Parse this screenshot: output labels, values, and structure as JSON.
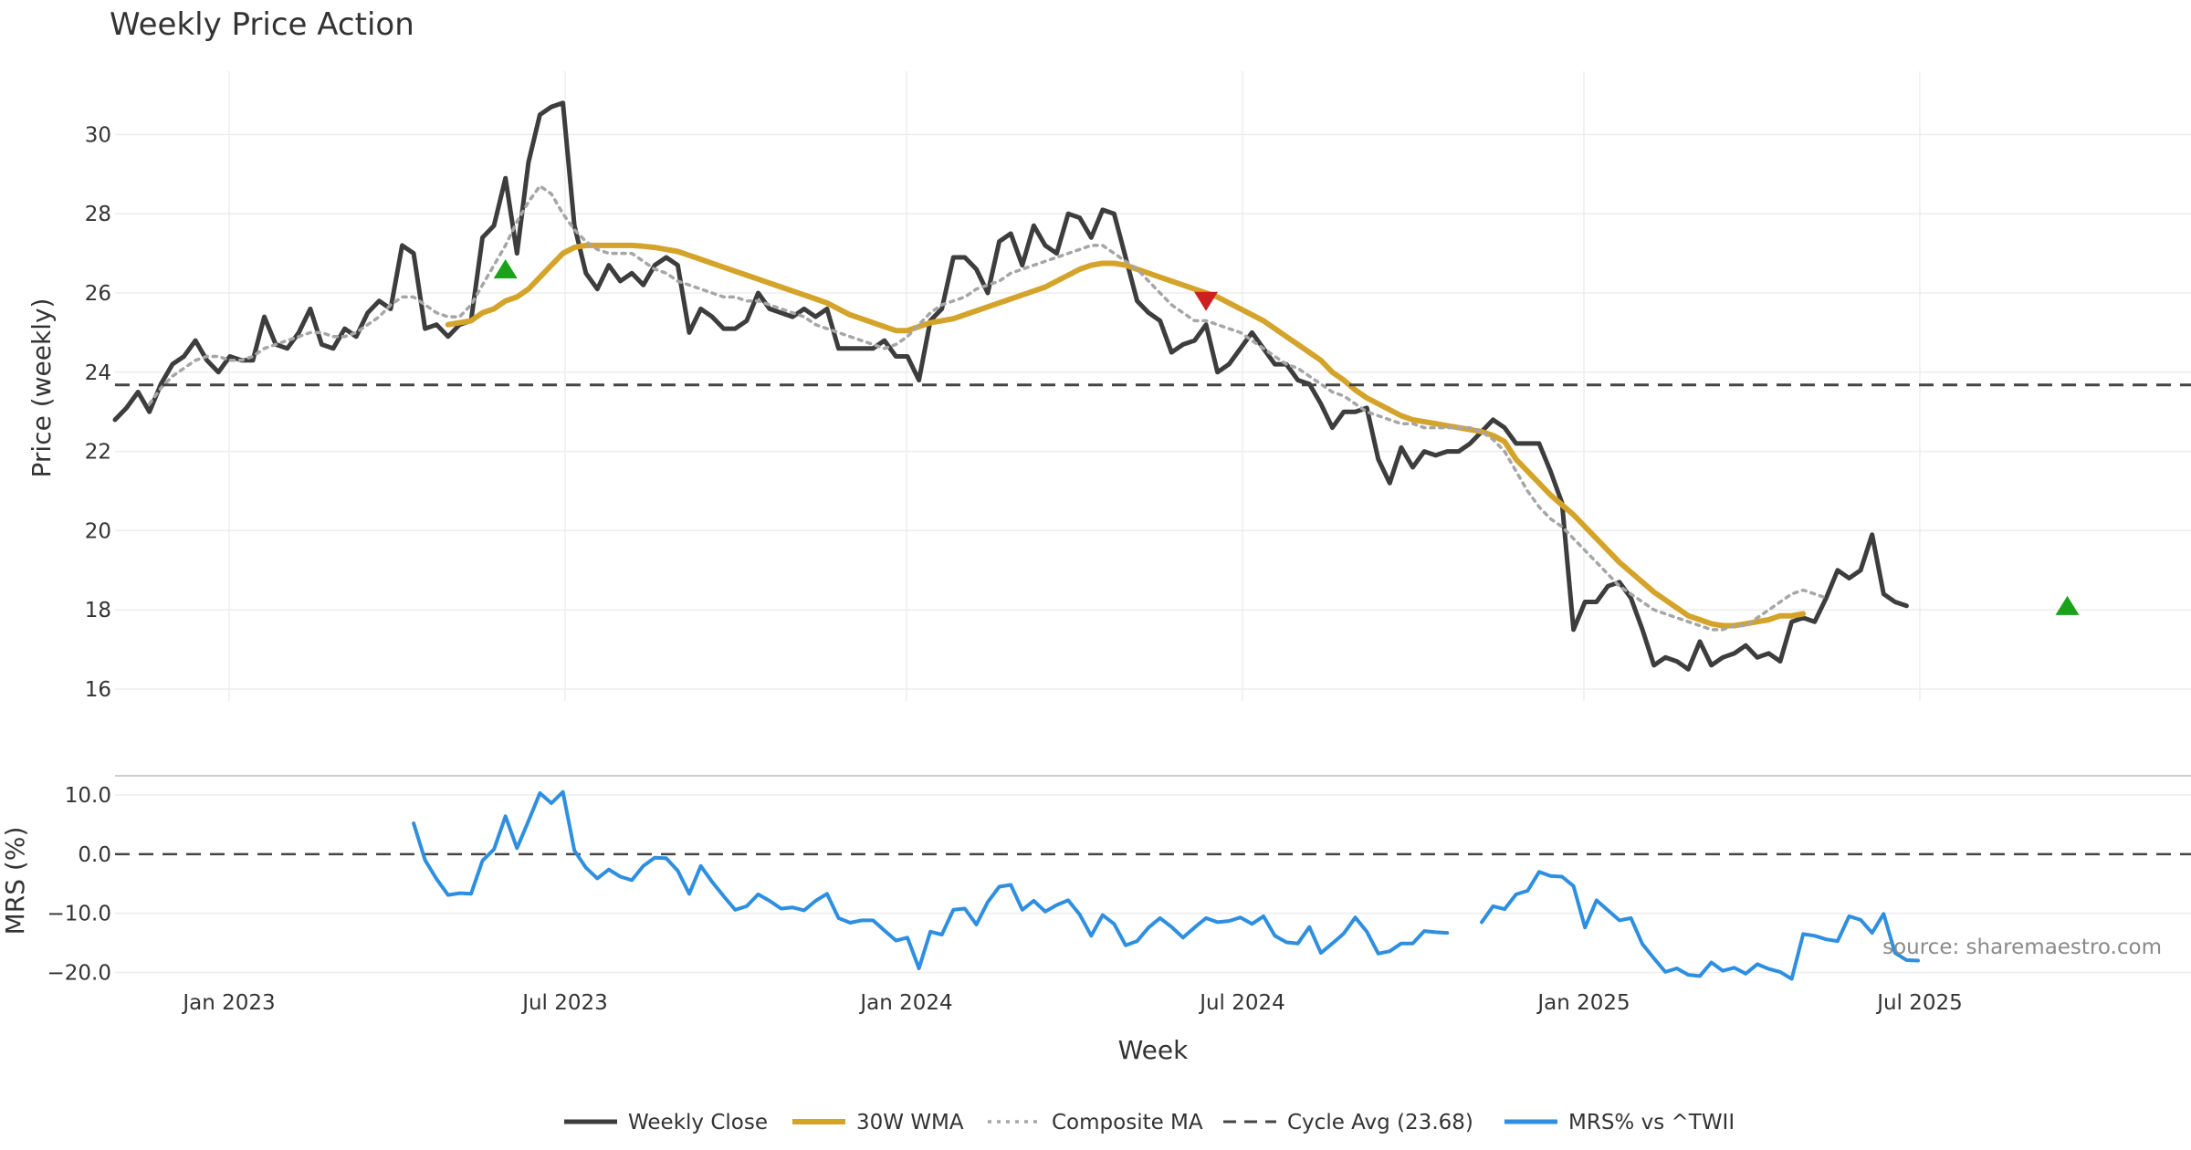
{
  "chart_data": {
    "type": "line",
    "title": "Weekly Price Action",
    "xlabel": "Week",
    "x_ticks": [
      "Jan 2023",
      "Jul 2023",
      "Jan 2024",
      "Jul 2024",
      "Jan 2025",
      "Jul 2025"
    ],
    "source": "source: sharemaestro.com",
    "price_panel": {
      "ylabel": "Price (weekly)",
      "ylim": [
        15.7,
        31.6
      ],
      "y_ticks": [
        16,
        18,
        20,
        22,
        24,
        26,
        28,
        30
      ],
      "grid": true
    },
    "mrs_panel": {
      "ylabel": "MRS (%)",
      "ylim": [
        -21,
        12
      ],
      "y_ticks": [
        "10.0",
        "0.0",
        "−10.0",
        "−20.0"
      ],
      "y_tick_values": [
        10,
        0,
        -10,
        -20
      ],
      "zero_line": 0,
      "grid": true
    },
    "x_week_range": [
      0,
      176
    ],
    "series": [
      {
        "name": "Weekly Close",
        "color": "#3d3d3d",
        "style": "solid",
        "panel": "price",
        "x_start": 0,
        "values": [
          22.8,
          23.1,
          23.5,
          23.0,
          23.7,
          24.2,
          24.4,
          24.8,
          24.3,
          24.0,
          24.4,
          24.3,
          24.3,
          25.4,
          24.7,
          24.6,
          25.0,
          25.6,
          24.7,
          24.6,
          25.1,
          24.9,
          25.5,
          25.8,
          25.6,
          27.2,
          27.0,
          25.1,
          25.2,
          24.9,
          25.2,
          25.3,
          27.4,
          27.7,
          28.9,
          27.0,
          29.3,
          30.5,
          30.7,
          30.8,
          27.7,
          26.5,
          26.1,
          26.7,
          26.3,
          26.5,
          26.2,
          26.7,
          26.9,
          26.7,
          25.0,
          25.6,
          25.4,
          25.1,
          25.1,
          25.3,
          26.0,
          25.6,
          25.5,
          25.4,
          25.6,
          25.4,
          25.6,
          24.6,
          24.6,
          24.6,
          24.6,
          24.8,
          24.4,
          24.4,
          23.8,
          25.3,
          25.6,
          26.9,
          26.9,
          26.6,
          26.0,
          27.3,
          27.5,
          26.7,
          27.7,
          27.2,
          27.0,
          28.0,
          27.9,
          27.4,
          28.1,
          28.0,
          26.9,
          25.8,
          25.5,
          25.3,
          24.5,
          24.7,
          24.8,
          25.2,
          24.0,
          24.2,
          24.6,
          25.0,
          24.6,
          24.2,
          24.2,
          23.8,
          23.7,
          23.2,
          22.6,
          23.0,
          23.0,
          23.1,
          21.8,
          21.2,
          22.1,
          21.6,
          22.0,
          21.9,
          22.0,
          22.0,
          22.2,
          22.5,
          22.8,
          22.6,
          22.2,
          22.2,
          22.2,
          21.5,
          20.7,
          17.5,
          18.2,
          18.2,
          18.6,
          18.7,
          18.3,
          17.5,
          16.6,
          16.8,
          16.7,
          16.5,
          17.2,
          16.6,
          16.8,
          16.9,
          17.1,
          16.8,
          16.9,
          16.7,
          17.7,
          17.8,
          17.7,
          18.3,
          19.0,
          18.8,
          19.0,
          19.9,
          18.4,
          18.2,
          18.1
        ],
        "x_end_padding": 0
      },
      {
        "name": "30W WMA",
        "color": "#d4a32a",
        "style": "solid",
        "panel": "price",
        "x_start": 29,
        "values": [
          25.2,
          25.25,
          25.3,
          25.5,
          25.6,
          25.8,
          25.9,
          26.1,
          26.4,
          26.7,
          27.0,
          27.15,
          27.2,
          27.2,
          27.2,
          27.2,
          27.2,
          27.18,
          27.15,
          27.1,
          27.05,
          26.95,
          26.85,
          26.75,
          26.65,
          26.55,
          26.45,
          26.35,
          26.25,
          26.15,
          26.05,
          25.95,
          25.85,
          25.75,
          25.6,
          25.45,
          25.35,
          25.25,
          25.15,
          25.05,
          25.05,
          25.15,
          25.25,
          25.3,
          25.35,
          25.45,
          25.55,
          25.65,
          25.75,
          25.85,
          25.95,
          26.05,
          26.15,
          26.3,
          26.45,
          26.6,
          26.7,
          26.75,
          26.75,
          26.7,
          26.6,
          26.5,
          26.4,
          26.3,
          26.2,
          26.1,
          26.0,
          25.9,
          25.75,
          25.6,
          25.45,
          25.3,
          25.1,
          24.9,
          24.7,
          24.5,
          24.3,
          24.0,
          23.8,
          23.55,
          23.35,
          23.2,
          23.05,
          22.9,
          22.8,
          22.75,
          22.7,
          22.65,
          22.6,
          22.55,
          22.5,
          22.4,
          22.25,
          21.8,
          21.5,
          21.2,
          20.9,
          20.65,
          20.4,
          20.1,
          19.8,
          19.5,
          19.2,
          18.95,
          18.7,
          18.45,
          18.25,
          18.05,
          17.85,
          17.75,
          17.65,
          17.6,
          17.6,
          17.65,
          17.7,
          17.75,
          17.85,
          17.85,
          17.9
        ],
        "x_end_padding": 0
      },
      {
        "name": "Composite MA",
        "color": "#a6a6a6",
        "style": "dotted",
        "panel": "price",
        "x_start": 3,
        "values": [
          23.2,
          23.6,
          23.9,
          24.1,
          24.3,
          24.4,
          24.4,
          24.3,
          24.3,
          24.4,
          24.6,
          24.7,
          24.8,
          24.9,
          25.0,
          25.0,
          24.9,
          24.9,
          25.0,
          25.2,
          25.4,
          25.7,
          25.9,
          25.9,
          25.7,
          25.5,
          25.4,
          25.4,
          25.7,
          26.2,
          26.7,
          27.2,
          27.8,
          28.3,
          28.7,
          28.5,
          28.0,
          27.6,
          27.3,
          27.1,
          27.0,
          27.0,
          27.0,
          26.8,
          26.6,
          26.5,
          26.3,
          26.2,
          26.1,
          26.0,
          25.9,
          25.9,
          25.8,
          25.8,
          25.7,
          25.6,
          25.5,
          25.4,
          25.2,
          25.1,
          25.0,
          24.9,
          24.8,
          24.7,
          24.6,
          24.7,
          24.9,
          25.2,
          25.5,
          25.7,
          25.8,
          25.9,
          26.1,
          26.2,
          26.3,
          26.5,
          26.6,
          26.7,
          26.8,
          26.9,
          27.0,
          27.1,
          27.2,
          27.2,
          27.0,
          26.8,
          26.6,
          26.3,
          26.0,
          25.7,
          25.5,
          25.3,
          25.3,
          25.2,
          25.1,
          25.0,
          24.8,
          24.6,
          24.4,
          24.2,
          24.1,
          23.9,
          23.7,
          23.5,
          23.4,
          23.2,
          23.0,
          22.9,
          22.8,
          22.7,
          22.7,
          22.6,
          22.6,
          22.6,
          22.6,
          22.6,
          22.5,
          22.3,
          22.0,
          21.5,
          21.0,
          20.6,
          20.3,
          20.1,
          19.8,
          19.5,
          19.2,
          18.9,
          18.6,
          18.4,
          18.2,
          18.0,
          17.9,
          17.8,
          17.7,
          17.6,
          17.5,
          17.5,
          17.6,
          17.6,
          17.8,
          18.0,
          18.2,
          18.4,
          18.5,
          18.4,
          18.3
        ],
        "x_end_padding": 0
      },
      {
        "name": "Cycle Avg (23.68)",
        "color": "#444444",
        "style": "dashed",
        "panel": "price",
        "value": 23.68
      },
      {
        "name": "MRS% vs ^TWII",
        "color": "#2e8fe0",
        "style": "solid",
        "panel": "mrs",
        "segments": [
          {
            "x_start": 26,
            "values": [
              5.2,
              -1.0,
              -4.2,
              -6.9,
              -6.6,
              -6.7,
              -1.1,
              0.8,
              6.4,
              1.0,
              5.6,
              10.3,
              8.6,
              10.5,
              0.6,
              -2.3,
              -4.1,
              -2.6,
              -3.8,
              -4.4,
              -2.0,
              -0.6,
              -0.7,
              -2.8,
              -6.7,
              -2.0,
              -4.7,
              -7.1,
              -9.4,
              -8.8,
              -6.8,
              -7.9,
              -9.2,
              -9.0,
              -9.5,
              -7.9,
              -6.7,
              -10.8,
              -11.6,
              -11.2,
              -11.2,
              -12.9,
              -14.6,
              -14.1,
              -19.3,
              -13.1,
              -13.6,
              -9.4,
              -9.2,
              -11.9,
              -8.1,
              -5.5,
              -5.2,
              -9.4,
              -7.9,
              -9.7,
              -8.6,
              -7.8,
              -10.2,
              -13.8,
              -10.3,
              -11.8,
              -15.4,
              -14.7,
              -12.4,
              -10.8,
              -12.3,
              -14.1,
              -12.4,
              -10.8,
              -11.5,
              -11.3,
              -10.7,
              -11.8,
              -10.5,
              -13.8,
              -14.9,
              -15.1,
              -12.3,
              -16.7,
              -15.1,
              -13.4,
              -10.7,
              -13.1,
              -16.8,
              -16.4,
              -15.1,
              -15.1,
              -13.0,
              -13.2,
              -13.3
            ]
          },
          {
            "x_start": 119,
            "values": [
              -11.5,
              -8.8,
              -9.3,
              -6.8,
              -6.2,
              -3.0,
              -3.7,
              -3.8,
              -5.4,
              -12.4,
              -7.8,
              -9.5,
              -11.2,
              -10.8,
              -15.2,
              -17.6,
              -19.9,
              -19.3,
              -20.4,
              -20.6,
              -18.3,
              -19.7,
              -19.2,
              -20.2,
              -18.6,
              -19.4,
              -19.9,
              -21.1,
              -13.5,
              -13.8,
              -14.4,
              -14.7,
              -10.5,
              -11.1,
              -13.3,
              -10.1,
              -16.7,
              -17.9,
              -18.0
            ]
          }
        ]
      }
    ],
    "signals": [
      {
        "type": "buy",
        "shape": "triangle-up",
        "color": "#1aa31a",
        "x": 34,
        "y": 26.6
      },
      {
        "type": "sell",
        "shape": "triangle-down",
        "color": "#cc1f1f",
        "x": 95,
        "y": 25.8
      },
      {
        "type": "buy",
        "shape": "triangle-up",
        "color": "#1aa31a",
        "x": 170,
        "y": 18.1
      }
    ],
    "legend": {
      "placement": "bottom-center",
      "entries": [
        "Weekly Close",
        "30W WMA",
        "Composite MA",
        "Cycle Avg (23.68)",
        "MRS% vs ^TWII"
      ]
    }
  }
}
